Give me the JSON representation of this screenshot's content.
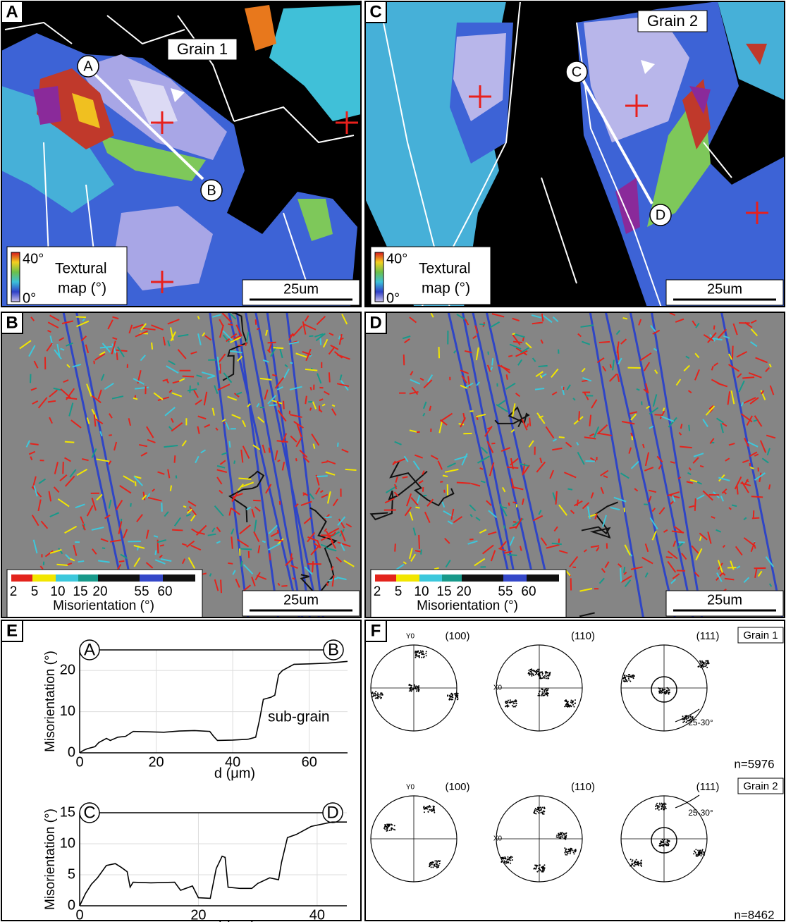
{
  "figure": {
    "maps": [
      {
        "panel": "A",
        "type": "texture",
        "grain": "Grain 1",
        "profile": [
          "A",
          "B"
        ],
        "legend": [
          "40°",
          "0°",
          "Textural",
          "map (°)"
        ],
        "scale": "25um"
      },
      {
        "panel": "C",
        "type": "texture",
        "grain": "Grain 2",
        "profile": [
          "C",
          "D"
        ],
        "legend": [
          "40°",
          "0°",
          "Textural",
          "map (°)"
        ],
        "scale": "25um"
      },
      {
        "panel": "B",
        "type": "misorientation",
        "colorbar": {
          "ticks": [
            2,
            5,
            10,
            15,
            20,
            55,
            60
          ],
          "colors": [
            "#e3231c",
            "#f2e600",
            "#3cc8dc",
            "#17998a",
            "#111111",
            "#3447c8",
            "#111111"
          ],
          "label": "Misorientation (°)"
        },
        "scale": "25um"
      },
      {
        "panel": "D",
        "type": "misorientation",
        "colorbar": {
          "ticks": [
            2,
            5,
            10,
            15,
            20,
            55,
            60
          ],
          "colors": [
            "#e3231c",
            "#f2e600",
            "#3cc8dc",
            "#17998a",
            "#111111",
            "#3447c8",
            "#111111"
          ],
          "label": "Misorientation (°)"
        },
        "scale": "25um"
      }
    ],
    "profiles_panel": "E",
    "poles": {
      "panel": "F",
      "rows": [
        {
          "grain": "Grain 1",
          "n": "n=5976",
          "planes": [
            "(100)",
            "(110)",
            "(111)"
          ],
          "axes": [
            "Y0",
            "X0"
          ],
          "rotation": "25-30°"
        },
        {
          "grain": "Grain 2",
          "n": "n=8462",
          "planes": [
            "(100)",
            "(110)",
            "(111)"
          ],
          "axes": [
            "Y0",
            "X0"
          ],
          "rotation": "25-30°"
        }
      ]
    }
  },
  "chart_data": [
    {
      "type": "line",
      "xlabel": "d (μm)",
      "ylabel": "Misorientation (°)",
      "xlim": [
        0,
        70
      ],
      "ylim": [
        0,
        25
      ],
      "xticks": [
        0,
        20,
        40,
        60
      ],
      "yticks": [
        0,
        10,
        20
      ],
      "grid": true,
      "profile_labels": [
        "A",
        "B"
      ],
      "annotation": "sub-grain",
      "series": [
        {
          "color": "#000000",
          "x": [
            0,
            1,
            2,
            4,
            5,
            7,
            8,
            10,
            12,
            14,
            18,
            22,
            26,
            30,
            34,
            35,
            36,
            40,
            44,
            46,
            47,
            48,
            50,
            51,
            52,
            53,
            56,
            60,
            65,
            70
          ],
          "values": [
            0,
            0.6,
            1,
            1.5,
            2.5,
            3.5,
            3,
            3.8,
            4,
            5.2,
            5.1,
            5,
            5.3,
            5.4,
            5.2,
            4,
            3,
            3.1,
            3.3,
            3.8,
            8,
            13,
            13.5,
            14,
            19,
            20,
            21.5,
            21.6,
            21.8,
            22.2
          ]
        }
      ]
    },
    {
      "type": "line",
      "xlabel": "d (μm)",
      "ylabel": "Misorientation (°)",
      "xlim": [
        0,
        45
      ],
      "ylim": [
        0,
        15
      ],
      "xticks": [
        0,
        20,
        40
      ],
      "yticks": [
        0,
        5,
        10,
        15
      ],
      "grid": true,
      "profile_labels": [
        "C",
        "D"
      ],
      "series": [
        {
          "color": "#000000",
          "x": [
            0,
            1,
            2,
            3,
            4.5,
            6,
            7,
            8,
            8.5,
            9,
            12,
            16,
            17,
            19,
            20,
            22,
            23,
            24,
            24.5,
            25,
            27,
            29,
            30,
            32,
            33.5,
            34,
            35,
            36.5,
            39,
            42.5,
            45
          ],
          "values": [
            0,
            2,
            3.5,
            4.5,
            6.5,
            6.8,
            6.2,
            5.5,
            3,
            3.8,
            3.7,
            3.8,
            2.5,
            3.2,
            1.3,
            1.2,
            6,
            8,
            7.8,
            3,
            2.8,
            2.8,
            3.6,
            4.5,
            4.2,
            7,
            11,
            11.5,
            12.8,
            13.5,
            13.5
          ]
        }
      ]
    }
  ]
}
